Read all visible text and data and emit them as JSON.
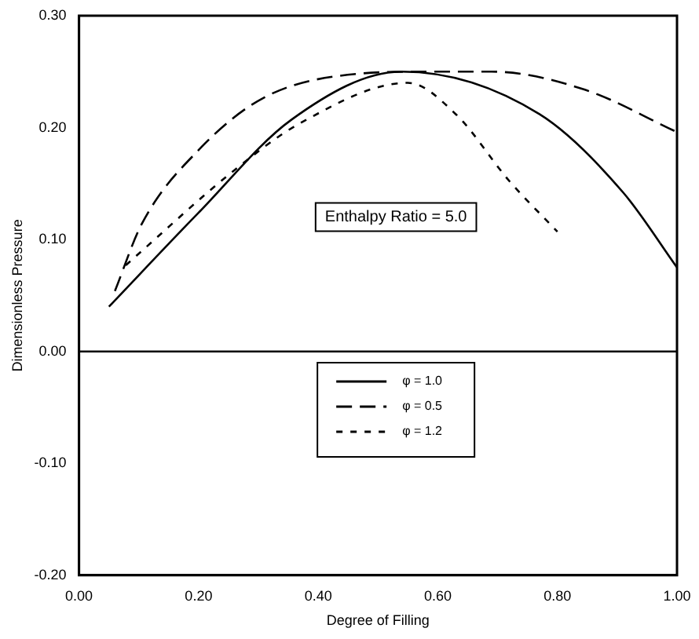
{
  "chart_data": {
    "type": "line",
    "xlabel": "Degree of Filling",
    "ylabel": "Dimensionless Pressure",
    "xlim": [
      0,
      1
    ],
    "ylim": [
      -0.2,
      0.3
    ],
    "xticks": [
      {
        "value": 0,
        "label": "0.00"
      },
      {
        "value": 0.2,
        "label": "0.20"
      },
      {
        "value": 0.4,
        "label": "0.40"
      },
      {
        "value": 0.6,
        "label": "0.60"
      },
      {
        "value": 0.8,
        "label": "0.80"
      },
      {
        "value": 1,
        "label": "1.00"
      }
    ],
    "yticks": [
      {
        "value": -0.2,
        "label": "-0.20"
      },
      {
        "value": -0.1,
        "label": "-0.10"
      },
      {
        "value": 0,
        "label": "0.00"
      },
      {
        "value": 0.1,
        "label": "0.10"
      },
      {
        "value": 0.2,
        "label": "0.20"
      },
      {
        "value": 0.3,
        "label": "0.30"
      }
    ],
    "series": [
      {
        "name": "φ = 1.0",
        "color": "#000000",
        "line_style": "solid",
        "x": [
          0.05,
          0.2,
          0.355,
          0.54,
          0.77,
          0.91,
          1.0
        ],
        "values": [
          0.04,
          0.124,
          0.207,
          0.25,
          0.212,
          0.142,
          0.075
        ]
      },
      {
        "name": "φ = 0.5",
        "color": "#000000",
        "line_style": "dashed",
        "x": [
          0.06,
          0.105,
          0.2,
          0.31,
          0.465,
          0.58,
          0.69,
          0.845,
          1.0
        ],
        "values": [
          0.054,
          0.114,
          0.18,
          0.227,
          0.248,
          0.25,
          0.25,
          0.234,
          0.196
        ]
      },
      {
        "name": "φ = 1.2",
        "color": "#000000",
        "line_style": "dotted",
        "x": [
          0.078,
          0.26,
          0.37,
          0.55,
          0.63,
          0.72,
          0.8
        ],
        "values": [
          0.077,
          0.162,
          0.204,
          0.24,
          0.212,
          0.152,
          0.107
        ]
      }
    ],
    "ref_lines": [
      {
        "axis": "y",
        "value": 0,
        "color": "#000000"
      }
    ],
    "annotations": [
      "Enthalpy Ratio = 5.0"
    ],
    "legend": "bottom",
    "grid": false,
    "marker": "none"
  }
}
